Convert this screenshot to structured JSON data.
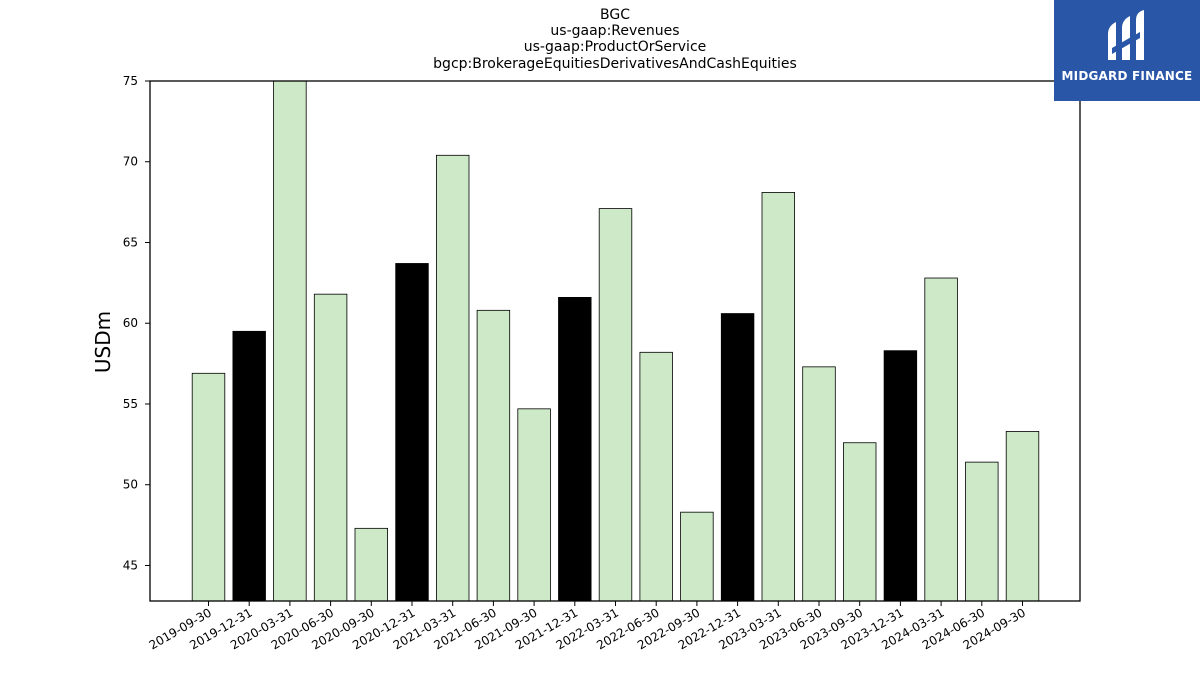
{
  "logo": {
    "text": "MIDGARD FINANCE"
  },
  "chart_data": {
    "type": "bar",
    "title_lines": [
      "BGC",
      "us-gaap:Revenues",
      "us-gaap:ProductOrService",
      "bgcp:BrokerageEquitiesDerivativesAndCashEquities"
    ],
    "xlabel": "",
    "ylabel": "USDm",
    "ylim": [
      42.8,
      75
    ],
    "yticks": [
      45,
      50,
      55,
      60,
      65,
      70,
      75
    ],
    "grid": false,
    "categories": [
      "2019-09-30",
      "2019-12-31",
      "2020-03-31",
      "2020-06-30",
      "2020-09-30",
      "2020-12-31",
      "2021-03-31",
      "2021-06-30",
      "2021-09-30",
      "2021-12-31",
      "2022-03-31",
      "2022-06-30",
      "2022-09-30",
      "2022-12-31",
      "2023-03-31",
      "2023-06-30",
      "2023-09-30",
      "2023-12-31",
      "2024-03-31",
      "2024-06-30",
      "2024-09-30"
    ],
    "values": [
      56.9,
      59.5,
      75.0,
      61.8,
      47.3,
      63.7,
      70.4,
      60.8,
      54.7,
      61.6,
      67.1,
      58.2,
      48.3,
      60.6,
      68.1,
      57.3,
      52.6,
      58.3,
      62.8,
      51.4,
      53.3
    ],
    "bar_colors": [
      "#cde9c8",
      "#000000",
      "#cde9c8",
      "#cde9c8",
      "#cde9c8",
      "#000000",
      "#cde9c8",
      "#cde9c8",
      "#cde9c8",
      "#000000",
      "#cde9c8",
      "#cde9c8",
      "#cde9c8",
      "#000000",
      "#cde9c8",
      "#cde9c8",
      "#cde9c8",
      "#000000",
      "#cde9c8",
      "#cde9c8",
      "#cde9c8"
    ],
    "colors": {
      "light": "#cde9c8",
      "dark": "#000000",
      "edge": "#000000"
    }
  }
}
